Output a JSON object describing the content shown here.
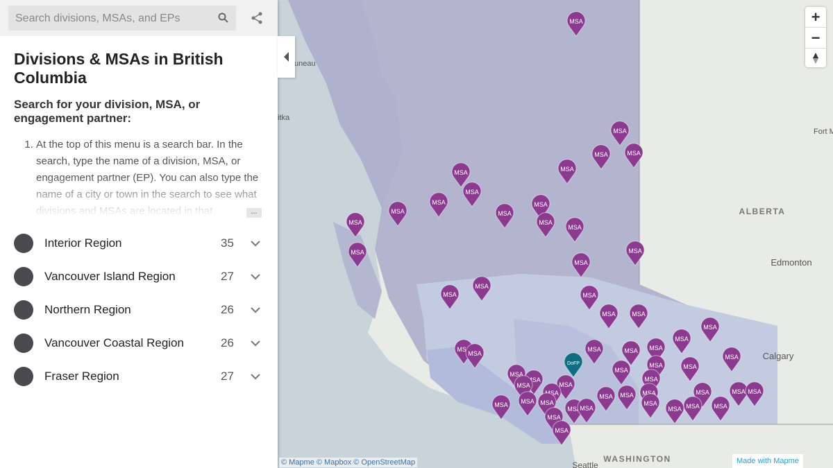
{
  "search": {
    "placeholder": "Search divisions, MSAs, and EPs"
  },
  "sidebar": {
    "title": "Divisions & MSAs in British Columbia",
    "subtitle": "Search for your division, MSA, or engagement partner:",
    "instructions": [
      "At the top of this menu is a search bar. In the search, type the name of a division, MSA, or engagement partner (EP). You can also type the name of a city or town in the search to see what divisions and MSAs are located in that"
    ],
    "more": "...",
    "regions": [
      {
        "name": "Interior Region",
        "count": 35
      },
      {
        "name": "Vancouver Island Region",
        "count": 27
      },
      {
        "name": "Northern Region",
        "count": 26
      },
      {
        "name": "Vancouver Coastal Region",
        "count": 26
      },
      {
        "name": "Fraser Region",
        "count": 27
      }
    ]
  },
  "map": {
    "places": [
      "uneau",
      "itka",
      "Fort M",
      "ALBERTA",
      "Edmonton",
      "Calgary",
      "WASHINGTON",
      "Seattle"
    ],
    "zoom_in": "+",
    "zoom_out": "−",
    "attribution": "© Mapme © Mapbox © OpenStreetMap",
    "made_with": "Made with Mapme",
    "markers": [
      {
        "label": "MSA",
        "color": "#8b3a8f"
      },
      {
        "label": "MSA",
        "color": "#8b3a8f"
      },
      {
        "label": "MSA",
        "color": "#8b3a8f"
      },
      {
        "label": "MSA",
        "color": "#8b3a8f"
      },
      {
        "label": "MSA",
        "color": "#8b3a8f"
      },
      {
        "label": "MSA",
        "color": "#8b3a8f"
      },
      {
        "label": "MSA",
        "color": "#8b3a8f"
      },
      {
        "label": "MSA",
        "color": "#8b3a8f"
      },
      {
        "label": "MSA",
        "color": "#8b3a8f"
      },
      {
        "label": "MSA",
        "color": "#8b3a8f"
      },
      {
        "label": "MSA",
        "color": "#8b3a8f"
      },
      {
        "label": "MSA",
        "color": "#8b3a8f"
      },
      {
        "label": "MSA",
        "color": "#8b3a8f"
      },
      {
        "label": "MSA",
        "color": "#8b3a8f"
      },
      {
        "label": "MSA",
        "color": "#8b3a8f"
      },
      {
        "label": "MSA",
        "color": "#8b3a8f"
      },
      {
        "label": "MSA",
        "color": "#8b3a8f"
      },
      {
        "label": "MSA",
        "color": "#8b3a8f"
      },
      {
        "label": "MSA",
        "color": "#8b3a8f"
      },
      {
        "label": "MSA",
        "color": "#8b3a8f"
      },
      {
        "label": "MSA",
        "color": "#8b3a8f"
      },
      {
        "label": "MSA",
        "color": "#8b3a8f"
      },
      {
        "label": "MSA",
        "color": "#8b3a8f"
      },
      {
        "label": "MSA",
        "color": "#8b3a8f"
      },
      {
        "label": "MSA",
        "color": "#8b3a8f"
      },
      {
        "label": "MSA",
        "color": "#8b3a8f"
      },
      {
        "label": "MSA",
        "color": "#8b3a8f"
      },
      {
        "label": "MSA",
        "color": "#8b3a8f"
      },
      {
        "label": "MSA",
        "color": "#8b3a8f"
      },
      {
        "label": "MSA",
        "color": "#8b3a8f"
      },
      {
        "label": "MSA",
        "color": "#8b3a8f"
      },
      {
        "label": "MSA",
        "color": "#8b3a8f"
      },
      {
        "label": "MSA",
        "color": "#8b3a8f"
      },
      {
        "label": "MSA",
        "color": "#8b3a8f"
      },
      {
        "label": "MSA",
        "color": "#8b3a8f"
      },
      {
        "label": "MSA",
        "color": "#8b3a8f"
      },
      {
        "label": "MSA",
        "color": "#8b3a8f"
      },
      {
        "label": "MSA",
        "color": "#8b3a8f"
      },
      {
        "label": "MSA",
        "color": "#8b3a8f"
      },
      {
        "label": "MSA",
        "color": "#8b3a8f"
      },
      {
        "label": "MSA",
        "color": "#8b3a8f"
      },
      {
        "label": "MSA",
        "color": "#8b3a8f"
      },
      {
        "label": "MSA",
        "color": "#8b3a8f"
      },
      {
        "label": "MSA",
        "color": "#8b3a8f"
      },
      {
        "label": "MSA",
        "color": "#8b3a8f"
      },
      {
        "label": "MSA",
        "color": "#8b3a8f"
      },
      {
        "label": "MSA",
        "color": "#8b3a8f"
      },
      {
        "label": "MSA",
        "color": "#8b3a8f"
      },
      {
        "label": "MSA",
        "color": "#8b3a8f"
      },
      {
        "label": "MSA",
        "color": "#8b3a8f"
      },
      {
        "label": "MSA",
        "color": "#8b3a8f"
      },
      {
        "label": "MSA",
        "color": "#8b3a8f"
      },
      {
        "label": "MSA",
        "color": "#8b3a8f"
      },
      {
        "label": "MSA",
        "color": "#8b3a8f"
      },
      {
        "label": "MSA",
        "color": "#8b3a8f"
      },
      {
        "label": "MSA",
        "color": "#8b3a8f"
      },
      {
        "label": "DoFP",
        "color": "#0f6e82"
      }
    ]
  }
}
